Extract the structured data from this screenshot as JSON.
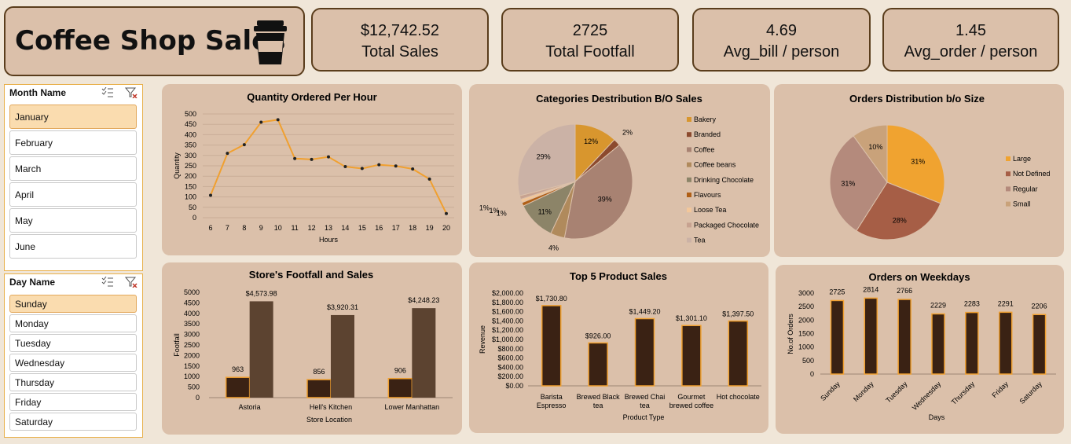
{
  "header": {
    "title": "Coffee Shop Sales",
    "icon": "coffee-cup-icon"
  },
  "kpis": [
    {
      "value": "$12,742.52",
      "label": "Total Sales"
    },
    {
      "value": "2725",
      "label": "Total Footfall"
    },
    {
      "value": "4.69",
      "label": "Avg_bill / person"
    },
    {
      "value": "1.45",
      "label": "Avg_order / person"
    }
  ],
  "month_slicer": {
    "title": "Month Name",
    "items": [
      "January",
      "February",
      "March",
      "April",
      "May",
      "June"
    ],
    "selected": "January"
  },
  "day_slicer": {
    "title": "Day Name",
    "items": [
      "Sunday",
      "Monday",
      "Tuesday",
      "Wednesday",
      "Thursday",
      "Friday",
      "Saturday"
    ],
    "selected": "Sunday"
  },
  "colors": {
    "bg": "#f0e6d8",
    "card": "#dbc0aa",
    "accent": "#f0a030",
    "dark_bar": "#3a2214",
    "brown_bar": "#5c4330"
  },
  "chart_data": [
    {
      "id": "hourly",
      "type": "line",
      "title": "Quantity Ordered Per Hour",
      "xlabel": "Hours",
      "ylabel": "Quantity",
      "x": [
        6,
        7,
        8,
        9,
        10,
        11,
        12,
        13,
        14,
        15,
        16,
        17,
        18,
        19,
        20
      ],
      "values": [
        108,
        310,
        352,
        460,
        472,
        285,
        281,
        293,
        246,
        237,
        255,
        249,
        235,
        186,
        20
      ],
      "ylim": [
        0,
        500
      ],
      "yticks": [
        0,
        50,
        100,
        150,
        200,
        250,
        300,
        350,
        400,
        450,
        500
      ]
    },
    {
      "id": "categories",
      "type": "pie",
      "title": "Categories Destribution B/O Sales",
      "labels": [
        "Bakery",
        "Branded",
        "Coffee",
        "Coffee beans",
        "Drinking Chocolate",
        "Flavours",
        "Loose Tea",
        "Packaged Chocolate",
        "Tea"
      ],
      "values": [
        12,
        2,
        39,
        4,
        11,
        1,
        1,
        1,
        29
      ],
      "data_labels": [
        "12%",
        "2%",
        "39%",
        "4%",
        "11%",
        "1%",
        "1%",
        "1%",
        "29%"
      ],
      "colors": [
        "#d8962e",
        "#8c4a2e",
        "#a88272",
        "#b08a5c",
        "#8c8468",
        "#b05f16",
        "#f3c79a",
        "#c7a290",
        "#cbb2a6"
      ]
    },
    {
      "id": "sizes",
      "type": "pie",
      "title": "Orders Distribution b/o Size",
      "labels": [
        "Large",
        "Not Defined",
        "Regular",
        "Small"
      ],
      "values": [
        31,
        28,
        31,
        10
      ],
      "data_labels": [
        "31%",
        "28%",
        "31%",
        "10%"
      ],
      "colors": [
        "#f0a330",
        "#a65e46",
        "#b48a7c",
        "#c9a27a"
      ]
    },
    {
      "id": "stores",
      "type": "bar",
      "title": "Store's Footfall and Sales",
      "xlabel": "Store Location",
      "ylabel": "Footfall",
      "categories": [
        "Astoria",
        "Hell's Kitchen",
        "Lower Manhattan"
      ],
      "series": [
        {
          "name": "Footfall",
          "values": [
            963,
            856,
            906
          ],
          "labels": [
            "963",
            "856",
            "906"
          ]
        },
        {
          "name": "Sales",
          "values": [
            4573.98,
            3920.31,
            4248.23
          ],
          "labels": [
            "$4,573.98",
            "$3,920.31",
            "$4,248.23"
          ]
        }
      ],
      "ylim": [
        0,
        5000
      ],
      "yticks": [
        0,
        500,
        1000,
        1500,
        2000,
        2500,
        3000,
        3500,
        4000,
        4500,
        5000
      ]
    },
    {
      "id": "products",
      "type": "bar",
      "title": "Top 5 Product Sales",
      "xlabel": "Product Type",
      "ylabel": "Revenue",
      "categories": [
        [
          "Barista",
          "Espresso"
        ],
        [
          "Brewed Black",
          "tea"
        ],
        [
          "Brewed Chai",
          "tea"
        ],
        [
          "Gourmet",
          "brewed coffee"
        ],
        [
          "Hot chocolate"
        ]
      ],
      "values": [
        1730.8,
        926.0,
        1449.2,
        1301.1,
        1397.5
      ],
      "labels": [
        "$1,730.80",
        "$926.00",
        "$1,449.20",
        "$1,301.10",
        "$1,397.50"
      ],
      "ylim": [
        0,
        2000
      ],
      "yticks": [
        "$0.00",
        "$200.00",
        "$400.00",
        "$600.00",
        "$800.00",
        "$1,000.00",
        "$1,200.00",
        "$1,400.00",
        "$1,600.00",
        "$1,800.00",
        "$2,000.00"
      ]
    },
    {
      "id": "weekdays",
      "type": "bar",
      "title": "Orders on Weekdays",
      "xlabel": "Days",
      "ylabel": "No.of Orders",
      "categories": [
        "Sunday",
        "Monday",
        "Tuesday",
        "Wednesday",
        "Thursday",
        "Friday",
        "Saturday"
      ],
      "values": [
        2725,
        2814,
        2766,
        2229,
        2283,
        2291,
        2206
      ],
      "ylim": [
        0,
        3000
      ],
      "yticks": [
        0,
        500,
        1000,
        1500,
        2000,
        2500,
        3000
      ]
    }
  ]
}
